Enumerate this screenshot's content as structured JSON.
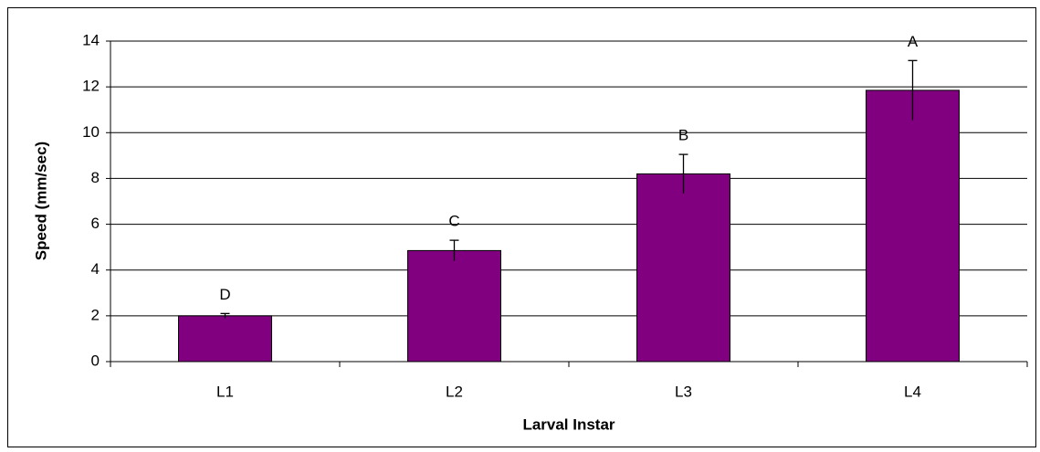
{
  "chart_data": {
    "type": "bar",
    "categories": [
      "L1",
      "L2",
      "L3",
      "L4"
    ],
    "values": [
      2.0,
      4.85,
      8.2,
      11.85
    ],
    "errors": [
      0.1,
      0.45,
      0.85,
      1.3
    ],
    "annotations": [
      "D",
      "C",
      "B",
      "A"
    ],
    "color": "#800080",
    "xlabel": "Larval Instar",
    "ylabel": "Speed (mm/sec)",
    "ylim": [
      0,
      14
    ],
    "yticks": [
      0,
      2,
      4,
      6,
      8,
      10,
      12,
      14
    ],
    "grid": true
  }
}
